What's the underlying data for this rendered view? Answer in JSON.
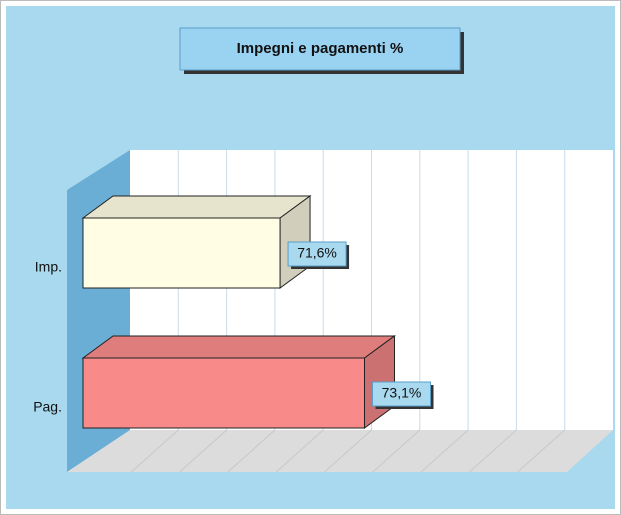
{
  "chart_data": {
    "type": "bar3d_horizontal",
    "title": "Impegni e pagamenti %",
    "categories": [
      "Imp.",
      "Pag."
    ],
    "values": [
      71.6,
      73.1
    ],
    "value_labels": [
      "71,6%",
      "73,1%"
    ],
    "colors": [
      "#fffde4",
      "#f88a8a"
    ],
    "xlim": [
      68.1,
      76.75
    ],
    "grid": true
  }
}
